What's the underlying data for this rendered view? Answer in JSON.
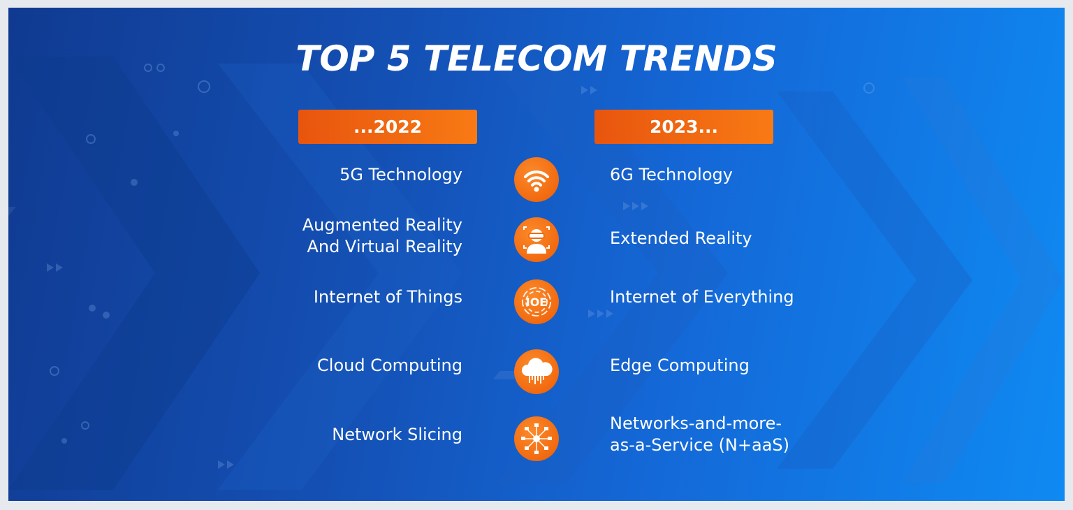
{
  "title": "TOP 5 TELECOM TRENDS",
  "columns": {
    "left_header": "...2022",
    "right_header": "2023..."
  },
  "trends": [
    {
      "from": "5G Technology",
      "to": "6G Technology",
      "icon": "wifi-icon"
    },
    {
      "from": "Augmented Reality\nAnd Virtual Reality",
      "to": "Extended Reality",
      "icon": "vr-headset-person-icon"
    },
    {
      "from": "Internet of Things",
      "to": "Internet of Everything",
      "icon": "ioe-icon"
    },
    {
      "from": "Cloud Computing",
      "to": "Edge Computing",
      "icon": "cloud-icon"
    },
    {
      "from": "Network Slicing",
      "to": "Networks-and-more-\nas-a-Service (N+aaS)",
      "icon": "network-hub-icon"
    }
  ],
  "colors": {
    "accent": "#f26a10",
    "background_dark": "#103a91",
    "background_light": "#0f8af2",
    "text": "#ffffff"
  }
}
